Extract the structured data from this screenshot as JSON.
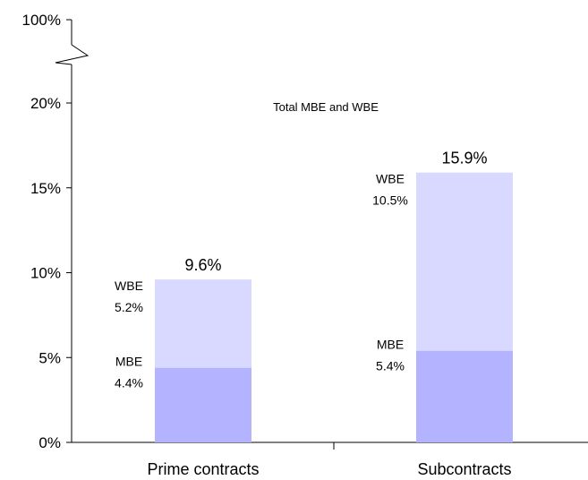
{
  "chart_data": {
    "type": "bar",
    "stacked": true,
    "annotation": "Total MBE and WBE",
    "ylim": [
      0,
      20
    ],
    "ytick_labels": [
      "0%",
      "5%",
      "10%",
      "15%",
      "20%",
      "100%"
    ],
    "axis_break": true,
    "categories": [
      "Prime contracts",
      "Subcontracts"
    ],
    "series": [
      {
        "name": "MBE",
        "values": [
          4.4,
          5.4
        ],
        "value_labels": [
          "4.4%",
          "5.4%"
        ],
        "color": "#b3b3ff"
      },
      {
        "name": "WBE",
        "values": [
          5.2,
          10.5
        ],
        "value_labels": [
          "5.2%",
          "10.5%"
        ],
        "color": "#d9d9ff"
      }
    ],
    "totals": [
      9.6,
      15.9
    ],
    "total_labels": [
      "9.6%",
      "15.9%"
    ],
    "grid": false,
    "legend": "none"
  }
}
